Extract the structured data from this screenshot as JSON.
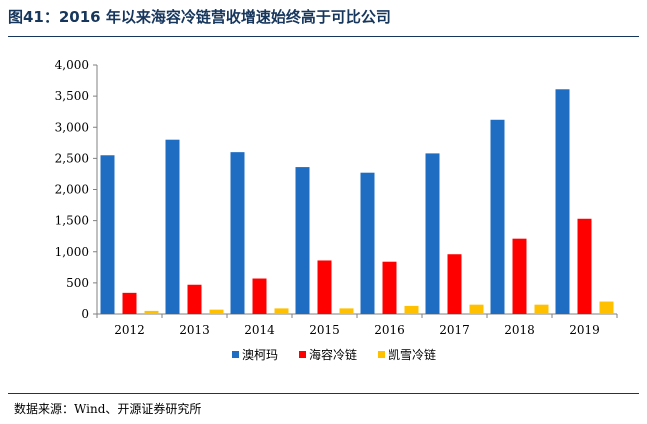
{
  "header": {
    "title": "图41：2016 年以来海容冷链营收增速始终高于可比公司"
  },
  "footer": {
    "source": "数据来源：Wind、开源证券研究所"
  },
  "colors": {
    "title": "#16365c",
    "series": [
      "#1f6dc2",
      "#ff0000",
      "#ffc000"
    ],
    "axis": "#808080"
  },
  "chart_data": {
    "type": "bar",
    "categories": [
      "2012",
      "2013",
      "2014",
      "2015",
      "2016",
      "2017",
      "2018",
      "2019"
    ],
    "series": [
      {
        "name": "澳柯玛",
        "values": [
          2550,
          2800,
          2600,
          2360,
          2270,
          2580,
          3120,
          3610
        ]
      },
      {
        "name": "海容冷链",
        "values": [
          340,
          470,
          570,
          860,
          840,
          960,
          1210,
          1530
        ]
      },
      {
        "name": "凯雪冷链",
        "values": [
          50,
          70,
          90,
          90,
          130,
          150,
          150,
          200
        ]
      }
    ],
    "ylim": [
      0,
      4000
    ],
    "yticks": [
      0,
      500,
      1000,
      1500,
      2000,
      2500,
      3000,
      3500,
      4000
    ],
    "ytick_labels": [
      "0",
      "500",
      "1,000",
      "1,500",
      "2,000",
      "2,500",
      "3,000",
      "3,500",
      "4,000"
    ],
    "grid": false,
    "legend": "bottom"
  }
}
